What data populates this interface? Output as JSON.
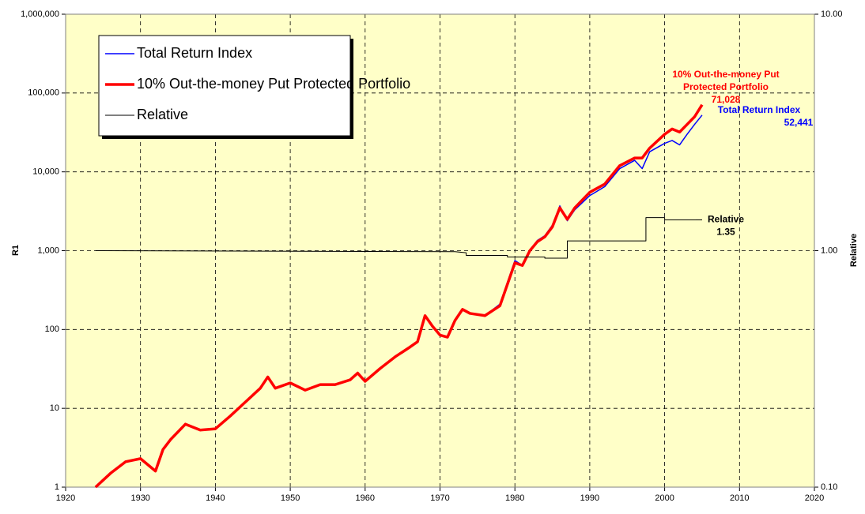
{
  "chart_data": {
    "type": "line",
    "ylabel": "R1",
    "y2label": "Relative",
    "xlim": [
      1920,
      2020
    ],
    "xticks": [
      1920,
      1930,
      1940,
      1950,
      1960,
      1970,
      1980,
      1990,
      2000,
      2010,
      2020
    ],
    "ylim": [
      1,
      1000000
    ],
    "yticks": [
      1,
      10,
      100,
      {
        "value": 1000,
        "label": "1,000"
      },
      {
        "value": 10000,
        "label": "10,000"
      },
      {
        "value": 100000,
        "label": "100,000"
      },
      {
        "value": 1000000,
        "label": "1,000,000"
      }
    ],
    "y2lim": [
      0.1,
      10
    ],
    "y2ticks": [
      {
        "value": 0.1,
        "label": "0.10"
      },
      {
        "value": 1,
        "label": "1.00"
      },
      {
        "value": 10,
        "label": "10.00"
      }
    ],
    "log_scale": true,
    "grid": true,
    "legend": "upper left",
    "background": "#ffffc8",
    "series": [
      {
        "name": "Total Return Index",
        "color": "#0000ff",
        "width": 1.5,
        "x": [
          1924,
          1926,
          1928,
          1930,
          1932,
          1933,
          1934,
          1936,
          1938,
          1940,
          1942,
          1944,
          1946,
          1947,
          1948,
          1950,
          1952,
          1954,
          1956,
          1958,
          1959,
          1960,
          1962,
          1964,
          1966,
          1967,
          1968,
          1969,
          1970,
          1971,
          1972,
          1973,
          1974,
          1976,
          1978,
          1980,
          1981,
          1982,
          1983,
          1984,
          1985,
          1986,
          1987,
          1988,
          1990,
          1992,
          1994,
          1996,
          1997,
          1998,
          2000,
          2001,
          2002,
          2003,
          2004,
          2005
        ],
        "values": [
          1,
          1.5,
          2.1,
          2.3,
          1.6,
          3,
          4,
          6.3,
          5.3,
          5.5,
          8,
          12,
          18,
          25,
          18,
          21,
          17,
          20,
          20,
          23,
          28,
          22,
          32,
          45,
          60,
          70,
          150,
          110,
          85,
          80,
          130,
          180,
          160,
          150,
          210,
          750,
          650,
          1000,
          1350,
          1550,
          2100,
          3700,
          2400,
          3300,
          5000,
          6500,
          11000,
          14000,
          11000,
          18000,
          23000,
          25000,
          22000,
          30000,
          40000,
          52441
        ]
      },
      {
        "name": "10% Out-the-money Put Protected Portfolio",
        "color": "#ff0000",
        "width": 3.5,
        "x": [
          1924,
          1926,
          1928,
          1930,
          1932,
          1933,
          1934,
          1936,
          1938,
          1940,
          1942,
          1944,
          1946,
          1947,
          1948,
          1950,
          1952,
          1954,
          1956,
          1958,
          1959,
          1960,
          1962,
          1964,
          1966,
          1967,
          1968,
          1969,
          1970,
          1971,
          1972,
          1973,
          1974,
          1976,
          1978,
          1980,
          1981,
          1982,
          1983,
          1984,
          1985,
          1986,
          1987,
          1988,
          1990,
          1992,
          1994,
          1996,
          1997,
          1998,
          2000,
          2001,
          2002,
          2003,
          2004,
          2005
        ],
        "values": [
          1,
          1.5,
          2.1,
          2.3,
          1.6,
          3,
          4,
          6.3,
          5.3,
          5.5,
          8,
          12,
          18,
          25,
          18,
          21,
          17,
          20,
          20,
          23,
          28,
          22,
          32,
          45,
          60,
          70,
          150,
          110,
          85,
          80,
          130,
          180,
          160,
          150,
          200,
          700,
          650,
          1000,
          1300,
          1500,
          2000,
          3500,
          2500,
          3500,
          5500,
          7000,
          12000,
          15000,
          15000,
          20000,
          30000,
          35000,
          32000,
          40000,
          50000,
          71028
        ]
      },
      {
        "name": "Relative",
        "color": "#000000",
        "width": 1,
        "axis": "y2",
        "x": [
          1924,
          1972,
          1973.5,
          1973.5,
          1979,
          1979,
          1984,
          1984,
          1987,
          1987,
          1997.5,
          1997.5,
          2000,
          2000,
          2005
        ],
        "values": [
          1,
          0.99,
          0.98,
          0.955,
          0.955,
          0.94,
          0.94,
          0.93,
          0.93,
          1.1,
          1.1,
          1.38,
          1.38,
          1.35,
          1.35
        ]
      }
    ],
    "annotations": [
      {
        "lines": [
          "10% Out-the-money Put",
          "Protected Portfolio"
        ],
        "value": 71028,
        "label": "71,028",
        "color": "#ff0000"
      },
      {
        "lines": [
          "Total Return Index"
        ],
        "value": 52441,
        "label": "52,441",
        "color": "#0000ff"
      },
      {
        "lines": [
          "Relative"
        ],
        "value": 1.35,
        "label": "1.35",
        "color": "#000000",
        "axis": "y2"
      }
    ]
  }
}
